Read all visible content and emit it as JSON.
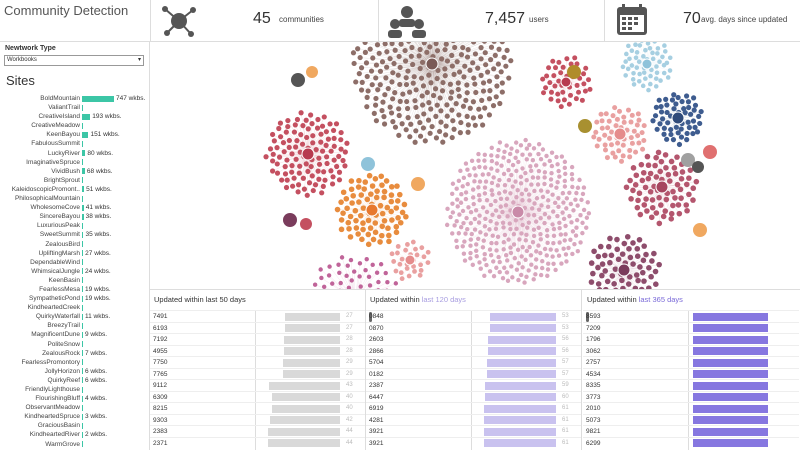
{
  "header": {
    "title": "Community Detection",
    "kpis": [
      {
        "icon": "network-icon",
        "value": "45",
        "label": "communities"
      },
      {
        "icon": "users-group-icon",
        "value": "7,457",
        "label": "users"
      },
      {
        "icon": "calendar-icon",
        "value": "70",
        "label": "avg. days since updated"
      }
    ]
  },
  "sidebar": {
    "filter_label": "Newtwork Type",
    "filter_value": "Workbooks",
    "sites_title": "Sites",
    "sites": [
      {
        "name": "BoldMountain",
        "value": 747,
        "label": "747 wkbs."
      },
      {
        "name": "ValiantTrail",
        "value": 10,
        "label": ""
      },
      {
        "name": "CreativeIsland",
        "value": 193,
        "label": "193 wkbs."
      },
      {
        "name": "CreativeMeadow",
        "value": 8,
        "label": ""
      },
      {
        "name": "KeenBayou",
        "value": 151,
        "label": "151 wkbs."
      },
      {
        "name": "FabulousSummit",
        "value": 7,
        "label": ""
      },
      {
        "name": "LuckyRiver",
        "value": 80,
        "label": "80 wkbs."
      },
      {
        "name": "ImaginativeSpruce",
        "value": 6,
        "label": ""
      },
      {
        "name": "VividBush",
        "value": 68,
        "label": "68 wkbs."
      },
      {
        "name": "BrightSprout",
        "value": 5,
        "label": ""
      },
      {
        "name": "KaleidoscopicPromont..",
        "value": 51,
        "label": "51 wkbs."
      },
      {
        "name": "PhilosophicalMountain",
        "value": 5,
        "label": ""
      },
      {
        "name": "WholesomeCove",
        "value": 41,
        "label": "41 wkbs."
      },
      {
        "name": "SincereBayou",
        "value": 38,
        "label": "38 wkbs."
      },
      {
        "name": "LuxuriousPeak",
        "value": 4,
        "label": ""
      },
      {
        "name": "SweetSummit",
        "value": 35,
        "label": "35 wkbs."
      },
      {
        "name": "ZealousBird",
        "value": 4,
        "label": ""
      },
      {
        "name": "UpliftingMarsh",
        "value": 27,
        "label": "27 wkbs."
      },
      {
        "name": "DependableWind",
        "value": 3,
        "label": ""
      },
      {
        "name": "WhimsicalJungle",
        "value": 24,
        "label": "24 wkbs."
      },
      {
        "name": "KeenBasin",
        "value": 3,
        "label": ""
      },
      {
        "name": "FearlessMesa",
        "value": 19,
        "label": "19 wkbs."
      },
      {
        "name": "SympatheticPond",
        "value": 19,
        "label": "19 wkbs."
      },
      {
        "name": "KindheartedCreek",
        "value": 2,
        "label": ""
      },
      {
        "name": "QuirkyWaterfall",
        "value": 11,
        "label": "11 wkbs."
      },
      {
        "name": "BreezyTrail",
        "value": 2,
        "label": ""
      },
      {
        "name": "MagnificentDune",
        "value": 9,
        "label": "9 wkbs."
      },
      {
        "name": "PoliteSnow",
        "value": 2,
        "label": ""
      },
      {
        "name": "ZealousRock",
        "value": 7,
        "label": "7 wkbs."
      },
      {
        "name": "FearlessPromontory",
        "value": 1,
        "label": ""
      },
      {
        "name": "JollyHorizon",
        "value": 6,
        "label": "6 wkbs."
      },
      {
        "name": "QuirkyReef",
        "value": 6,
        "label": "6 wkbs."
      },
      {
        "name": "FriendlyLighthouse",
        "value": 1,
        "label": ""
      },
      {
        "name": "FlourishingBluff",
        "value": 4,
        "label": "4 wkbs."
      },
      {
        "name": "ObservantMeadow",
        "value": 1,
        "label": ""
      },
      {
        "name": "KindheartedSpruce",
        "value": 3,
        "label": "3 wkbs."
      },
      {
        "name": "GraciousBasin",
        "value": 1,
        "label": ""
      },
      {
        "name": "KindheartedRiver",
        "value": 2,
        "label": "2 wkbs."
      },
      {
        "name": "WarmGrove",
        "value": 1,
        "label": ""
      },
      {
        "name": "CleverStone",
        "value": 1,
        "label": "1 wkbs."
      }
    ]
  },
  "tables": [
    {
      "title_prefix": "Updated within",
      "title_highlight": "last 50 days",
      "accent": "#d9d9d9",
      "highlight_color": "#333333",
      "rows": [
        {
          "id": "7491",
          "days": 27
        },
        {
          "id": "6193",
          "days": 27
        },
        {
          "id": "7192",
          "days": 28
        },
        {
          "id": "4955",
          "days": 28
        },
        {
          "id": "7750",
          "days": 29
        },
        {
          "id": "7765",
          "days": 29
        },
        {
          "id": "9112",
          "days": 43
        },
        {
          "id": "6309",
          "days": 40
        },
        {
          "id": "8215",
          "days": 40
        },
        {
          "id": "9303",
          "days": 42
        },
        {
          "id": "2383",
          "days": 44
        },
        {
          "id": "2371",
          "days": 44
        }
      ]
    },
    {
      "title_prefix": "Updated within",
      "title_highlight": "last 120 days",
      "accent": "#c9c2ef",
      "highlight_color": "#a89de0",
      "rows": [
        {
          "id": "0848",
          "days": 53
        },
        {
          "id": "0870",
          "days": 53
        },
        {
          "id": "2603",
          "days": 56
        },
        {
          "id": "2866",
          "days": 56
        },
        {
          "id": "5704",
          "days": 57
        },
        {
          "id": "0182",
          "days": 57
        },
        {
          "id": "2387",
          "days": 59
        },
        {
          "id": "6447",
          "days": 60
        },
        {
          "id": "6919",
          "days": 61
        },
        {
          "id": "4281",
          "days": 61
        },
        {
          "id": "3921",
          "days": 61
        },
        {
          "id": "3921",
          "days": 61
        }
      ]
    },
    {
      "title_prefix": "Updated within",
      "title_highlight": "last 365 days",
      "accent": "#8677e0",
      "highlight_color": "#7a6ad8",
      "rows": [
        {
          "id": "8593",
          "days": 0
        },
        {
          "id": "7209",
          "days": 0
        },
        {
          "id": "1796",
          "days": 0
        },
        {
          "id": "3062",
          "days": 0
        },
        {
          "id": "2757",
          "days": 0
        },
        {
          "id": "4534",
          "days": 0
        },
        {
          "id": "8335",
          "days": 0
        },
        {
          "id": "3773",
          "days": 0
        },
        {
          "id": "2010",
          "days": 0
        },
        {
          "id": "5073",
          "days": 0
        },
        {
          "id": "9821",
          "days": 0
        },
        {
          "id": "6299",
          "days": 0
        }
      ]
    }
  ],
  "network": {
    "clusters": [
      {
        "name": "cluster-brown",
        "hub": "#7a5a56",
        "node": "#8d6e68",
        "size": "large"
      },
      {
        "name": "cluster-pink",
        "hub": "#c98aa8",
        "node": "#d8a6bd",
        "size": "large"
      },
      {
        "name": "cluster-red",
        "hub": "#b73a4f",
        "node": "#c45060",
        "size": "medium"
      },
      {
        "name": "cluster-orange",
        "hub": "#e7782e",
        "node": "#e88c3e",
        "size": "medium"
      },
      {
        "name": "cluster-magenta",
        "hub": "#b2508a",
        "node": "#c06499",
        "size": "medium"
      },
      {
        "name": "cluster-salmon",
        "hub": "#e58c8c",
        "node": "#e9a0a0",
        "size": "small"
      },
      {
        "name": "cluster-navy",
        "hub": "#2f4a7a",
        "node": "#3e5c8f",
        "size": "small"
      },
      {
        "name": "cluster-lightblue",
        "hub": "#8fc3da",
        "node": "#a6cfe1",
        "size": "small"
      },
      {
        "name": "cluster-crimson",
        "hub": "#a64660",
        "node": "#b4566e",
        "size": "medium"
      },
      {
        "name": "cluster-plum",
        "hub": "#7a3c5c",
        "node": "#8e4d6c",
        "size": "small"
      }
    ]
  }
}
